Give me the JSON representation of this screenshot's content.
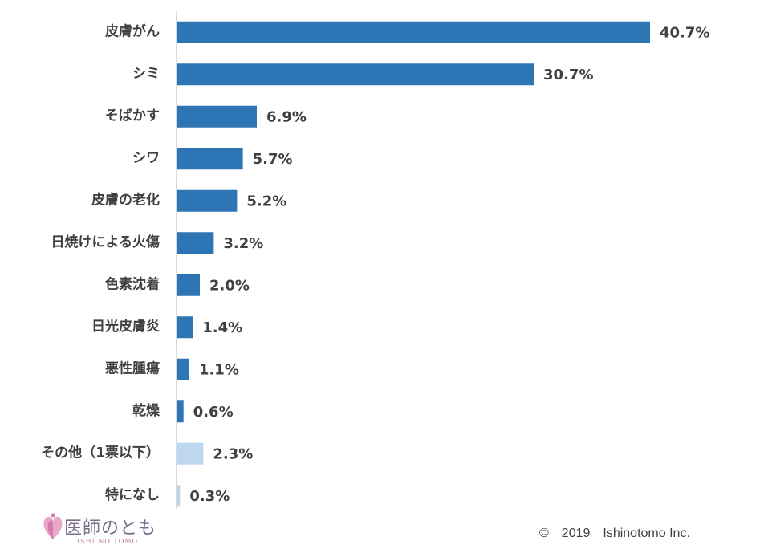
{
  "chart_data": {
    "type": "bar",
    "orientation": "horizontal",
    "categories": [
      "皮膚がん",
      "シミ",
      "そばかす",
      "シワ",
      "皮膚の老化",
      "日焼けによる火傷",
      "色素沈着",
      "日光皮膚炎",
      "悪性腫瘍",
      "乾燥",
      "その他（1票以下）",
      "特になし"
    ],
    "values": [
      40.7,
      30.7,
      6.9,
      5.7,
      5.2,
      3.2,
      2.0,
      1.4,
      1.1,
      0.6,
      2.3,
      0.3
    ],
    "value_labels": [
      "40.7%",
      "30.7%",
      "6.9%",
      "5.7%",
      "5.2%",
      "3.2%",
      "2.0%",
      "1.4%",
      "1.1%",
      "0.6%",
      "2.3%",
      "0.3%"
    ],
    "bar_colors": [
      "#2e75b6",
      "#2e75b6",
      "#2e75b6",
      "#2e75b6",
      "#2e75b6",
      "#2e75b6",
      "#2e75b6",
      "#2e75b6",
      "#2e75b6",
      "#2e75b6",
      "#bdd7ee",
      "#bdd7ee"
    ],
    "xlim": [
      0,
      43
    ],
    "grid": false,
    "legend": "none"
  },
  "logo": {
    "text": "医師のとも",
    "subtext": "ISHI NO TOMO"
  },
  "copyright": "©　2019　Ishinotomo Inc."
}
